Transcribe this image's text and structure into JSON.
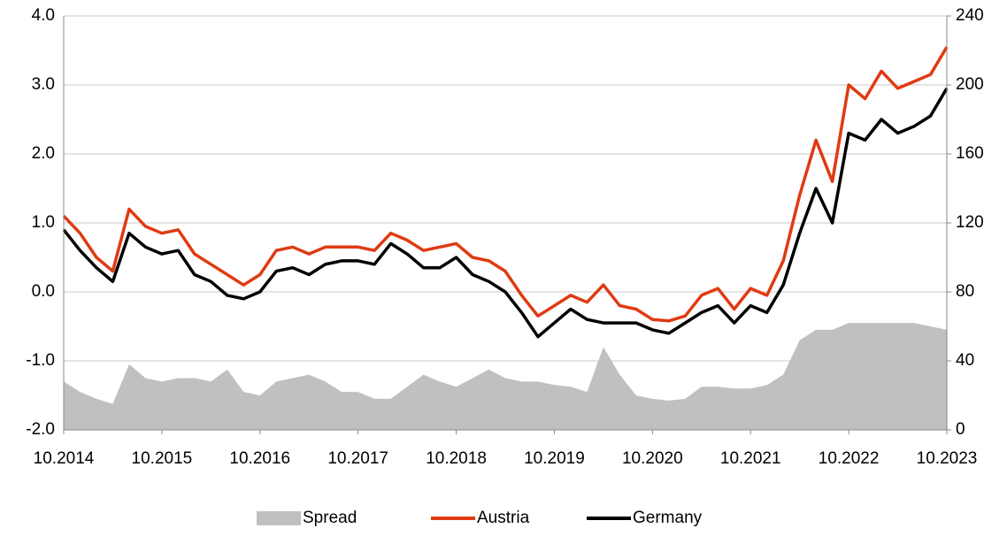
{
  "chart_data": {
    "type": "line",
    "categories": [
      "10.2014",
      null,
      null,
      null,
      null,
      null,
      "10.2015",
      null,
      null,
      null,
      null,
      null,
      "10.2016",
      null,
      null,
      null,
      null,
      null,
      "10.2017",
      null,
      null,
      null,
      null,
      null,
      "10.2018",
      null,
      null,
      null,
      null,
      null,
      "10.2019",
      null,
      null,
      null,
      null,
      null,
      "10.2020",
      null,
      null,
      null,
      null,
      null,
      "10.2021",
      null,
      null,
      null,
      null,
      null,
      "10.2022",
      null,
      null,
      null,
      null,
      null,
      "10.2023"
    ],
    "series": [
      {
        "name": "Spread",
        "color": "#c0c0c0",
        "axis": "y2",
        "style": "area",
        "values": [
          28,
          22,
          18,
          15,
          38,
          30,
          28,
          30,
          30,
          28,
          35,
          22,
          20,
          28,
          30,
          32,
          28,
          22,
          22,
          18,
          18,
          25,
          32,
          28,
          25,
          30,
          35,
          30,
          28,
          28,
          26,
          25,
          22,
          48,
          32,
          20,
          18,
          17,
          18,
          25,
          25,
          24,
          24,
          26,
          32,
          52,
          58,
          58,
          62,
          62,
          62,
          62,
          62,
          60,
          58
        ]
      },
      {
        "name": "Austria",
        "color": "#e03a12",
        "values": [
          1.1,
          0.85,
          0.5,
          0.3,
          1.2,
          0.95,
          0.85,
          0.9,
          0.55,
          0.4,
          0.25,
          0.1,
          0.25,
          0.6,
          0.65,
          0.55,
          0.65,
          0.65,
          0.65,
          0.6,
          0.85,
          0.75,
          0.6,
          0.65,
          0.7,
          0.5,
          0.45,
          0.3,
          -0.05,
          -0.35,
          -0.2,
          -0.05,
          -0.15,
          0.1,
          -0.2,
          -0.25,
          -0.4,
          -0.42,
          -0.35,
          -0.05,
          0.05,
          -0.25,
          0.05,
          -0.05,
          0.45,
          1.4,
          2.2,
          1.6,
          3.0,
          2.8,
          3.2,
          2.95,
          3.05,
          3.15,
          3.55
        ]
      },
      {
        "name": "Germany",
        "color": "#000000",
        "values": [
          0.9,
          0.6,
          0.35,
          0.15,
          0.85,
          0.65,
          0.55,
          0.6,
          0.25,
          0.15,
          -0.05,
          -0.1,
          0.0,
          0.3,
          0.35,
          0.25,
          0.4,
          0.45,
          0.45,
          0.4,
          0.7,
          0.55,
          0.35,
          0.35,
          0.5,
          0.25,
          0.15,
          0.0,
          -0.3,
          -0.65,
          -0.45,
          -0.25,
          -0.4,
          -0.45,
          -0.45,
          -0.45,
          -0.55,
          -0.6,
          -0.45,
          -0.3,
          -0.2,
          -0.45,
          -0.2,
          -0.3,
          0.1,
          0.85,
          1.5,
          1.0,
          2.3,
          2.2,
          2.5,
          2.3,
          2.4,
          2.55,
          2.95
        ]
      }
    ],
    "ylim": [
      -2,
      4
    ],
    "yticks": [
      {
        "value": -2,
        "label": "-2.0"
      },
      {
        "value": -1,
        "label": "-1.0"
      },
      {
        "value": 0,
        "label": "0.0"
      },
      {
        "value": 1,
        "label": "1.0"
      },
      {
        "value": 2,
        "label": "2.0"
      },
      {
        "value": 3,
        "label": "3.0"
      },
      {
        "value": 4,
        "label": "4.0"
      }
    ],
    "y2lim": [
      0,
      240
    ],
    "y2ticks": [
      0,
      40,
      80,
      120,
      160,
      200,
      240
    ],
    "grid": true,
    "legend": "bottom"
  }
}
